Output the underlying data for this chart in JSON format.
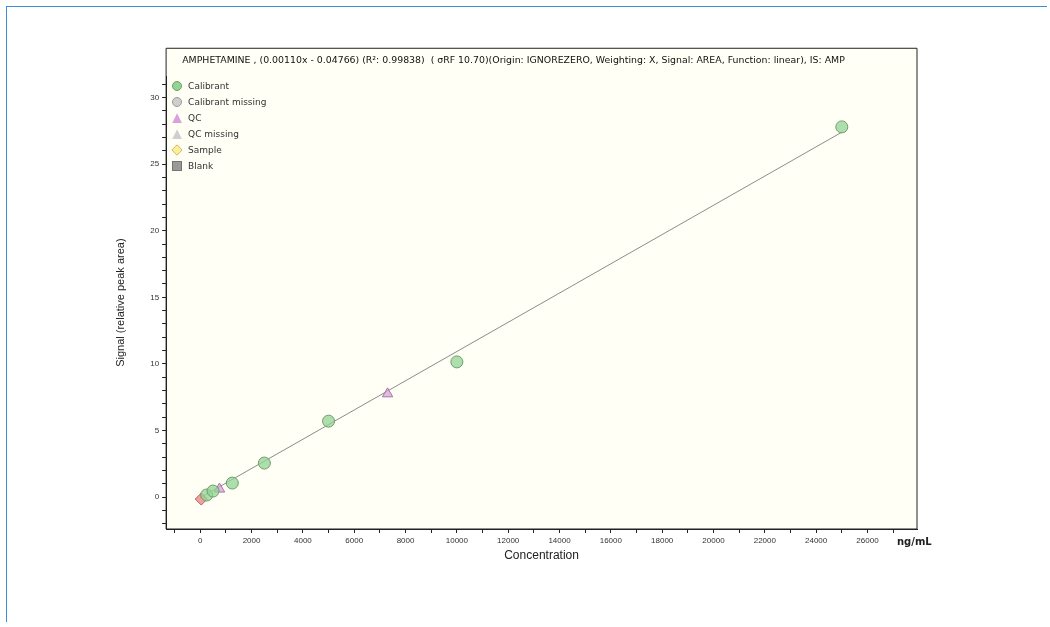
{
  "chart_data": {
    "type": "scatter",
    "title": "AMPHETAMINE , (0.00110x - 0.04766) (R²: 0.99838)  ( σRF 10.70)(Origin: IGNOREZERO, Weighting: X, Signal: AREA, Function: linear), IS: AMP",
    "xlabel": "Concentration",
    "ylabel": "Signal (relative peak area)",
    "annotations": [
      "ng/mL"
    ],
    "xlim": [
      -1330,
      27930
    ],
    "ylim": [
      -2.4,
      31.6
    ],
    "xticks": [
      {
        "value": -1000,
        "label": null
      },
      0,
      {
        "value": 1000,
        "label": null
      },
      2000,
      {
        "value": 3000,
        "label": null
      },
      4000,
      {
        "value": 5000,
        "label": null
      },
      6000,
      {
        "value": 7000,
        "label": null
      },
      8000,
      {
        "value": 9000,
        "label": null
      },
      10000,
      {
        "value": 11000,
        "label": null
      },
      12000,
      {
        "value": 13000,
        "label": null
      },
      14000,
      {
        "value": 15000,
        "label": null
      },
      16000,
      {
        "value": 17000,
        "label": null
      },
      18000,
      {
        "value": 19000,
        "label": null
      },
      20000,
      {
        "value": 21000,
        "label": null
      },
      22000,
      {
        "value": 23000,
        "label": null
      },
      24000,
      {
        "value": 25000,
        "label": null
      },
      26000,
      {
        "value": 27000,
        "label": null
      }
    ],
    "yticks": [
      {
        "value": -2,
        "label": null
      },
      {
        "value": -1,
        "label": null
      },
      0,
      {
        "value": 1,
        "label": null
      },
      {
        "value": 2,
        "label": null
      },
      {
        "value": 3,
        "label": null
      },
      {
        "value": 4,
        "label": null
      },
      5,
      {
        "value": 6,
        "label": null
      },
      {
        "value": 7,
        "label": null
      },
      {
        "value": 8,
        "label": null
      },
      {
        "value": 9,
        "label": null
      },
      10,
      {
        "value": 11,
        "label": null
      },
      {
        "value": 12,
        "label": null
      },
      {
        "value": 13,
        "label": null
      },
      {
        "value": 14,
        "label": null
      },
      15,
      {
        "value": 16,
        "label": null
      },
      {
        "value": 17,
        "label": null
      },
      {
        "value": 18,
        "label": null
      },
      {
        "value": 19,
        "label": null
      },
      20,
      {
        "value": 21,
        "label": null
      },
      {
        "value": 22,
        "label": null
      },
      {
        "value": 23,
        "label": null
      },
      {
        "value": 24,
        "label": null
      },
      25,
      {
        "value": 26,
        "label": null
      },
      {
        "value": 27,
        "label": null
      },
      {
        "value": 28,
        "label": null
      },
      {
        "value": 29,
        "label": null
      },
      30,
      {
        "value": 31,
        "label": null
      }
    ],
    "grid": false,
    "legend": "top left",
    "series": [
      {
        "type": "line",
        "color": "#8c8c8c",
        "marker": "none",
        "x": [
          0,
          25000
        ],
        "values": [
          -0.05,
          27.4
        ]
      },
      {
        "name": "Calibrant",
        "color": "#93d393",
        "marker": "circle",
        "x": [
          250,
          500,
          1250,
          2500,
          5000,
          10000,
          25000
        ],
        "values": [
          0.15,
          0.45,
          1.05,
          2.55,
          5.7,
          10.15,
          27.8
        ]
      },
      {
        "name": "Calibrant missing",
        "color": "#cfcfcf",
        "marker": "circle"
      },
      {
        "name": "QC",
        "color": "#d9a0d9",
        "marker": "triangle",
        "x": [
          750,
          7300
        ],
        "values": [
          0.6,
          7.75
        ]
      },
      {
        "name": "QC missing",
        "color": "#cfcfcf",
        "marker": "triangle"
      },
      {
        "name": "Sample",
        "color": "#ffee99",
        "marker": "diamond"
      },
      {
        "name": "Blank",
        "color": "#9a9a9a",
        "marker": "square"
      },
      {
        "color": "#f08080",
        "marker": "diamond",
        "x": [
          40
        ],
        "values": [
          -0.15
        ]
      }
    ]
  }
}
